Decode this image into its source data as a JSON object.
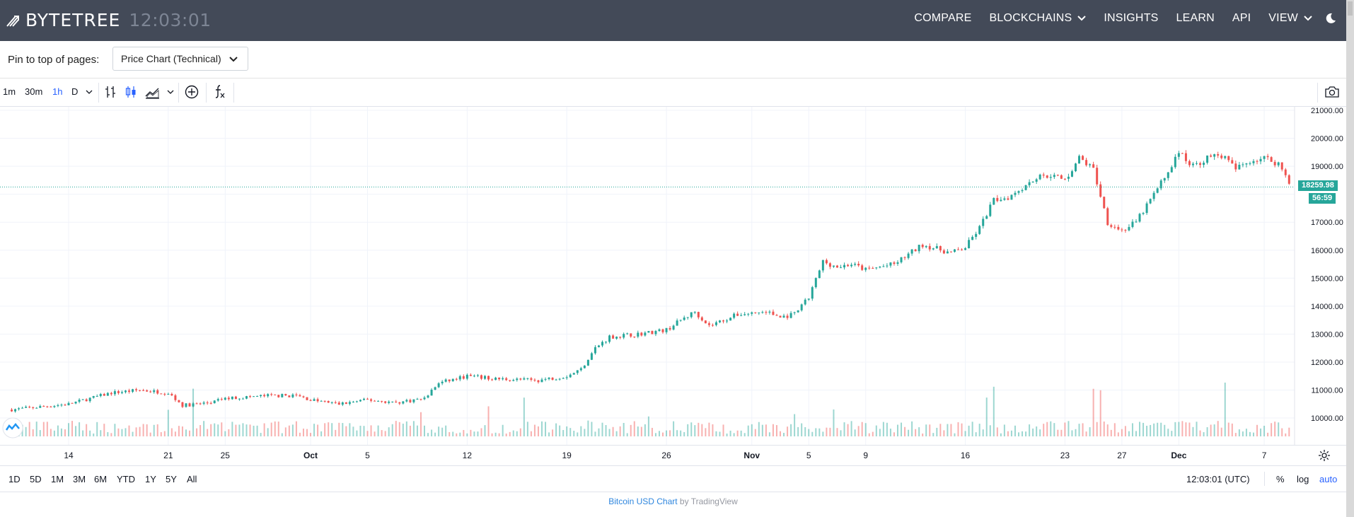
{
  "header": {
    "brand": "BYTETREE",
    "clock": "12:03:01",
    "nav": [
      {
        "label": "COMPARE",
        "dropdown": false
      },
      {
        "label": "BLOCKCHAINS",
        "dropdown": true
      },
      {
        "label": "INSIGHTS",
        "dropdown": false
      },
      {
        "label": "LEARN",
        "dropdown": false
      },
      {
        "label": "API",
        "dropdown": false
      },
      {
        "label": "VIEW",
        "dropdown": true
      }
    ]
  },
  "pin": {
    "label": "Pin to top of pages:",
    "selected": "Price Chart (Technical)"
  },
  "toolbar": {
    "intervals": [
      "1m",
      "30m",
      "1h",
      "D"
    ],
    "active_interval": "1h",
    "indicators_label": "fx"
  },
  "chart_data": {
    "type": "candlestick",
    "title": "",
    "series_name": "",
    "y_ticks": [
      "21000.00",
      "20000.00",
      "19000.00",
      "17000.00",
      "16000.00",
      "15000.00",
      "14000.00",
      "13000.00",
      "12000.00",
      "11000.00",
      "10000.00"
    ],
    "ylim": [
      9500,
      21100
    ],
    "x_ticks": [
      "14",
      "21",
      "25",
      "Oct",
      "5",
      "12",
      "19",
      "26",
      "Nov",
      "5",
      "9",
      "16",
      "23",
      "27",
      "Dec",
      "7"
    ],
    "last_price": "18259.98",
    "countdown": "56:59",
    "price_path": [
      [
        "Sep 10",
        10300
      ],
      [
        "Sep 12",
        10400
      ],
      [
        "Sep 14",
        10500
      ],
      [
        "Sep 17",
        10900
      ],
      [
        "Sep 19",
        11000
      ],
      [
        "Sep 21",
        10900
      ],
      [
        "Sep 22",
        10450
      ],
      [
        "Sep 24",
        10550
      ],
      [
        "Sep 25",
        10700
      ],
      [
        "Sep 28",
        10800
      ],
      [
        "Sep 30",
        10800
      ],
      [
        "Oct 1",
        10650
      ],
      [
        "Oct 3",
        10500
      ],
      [
        "Oct 5",
        10650
      ],
      [
        "Oct 7",
        10550
      ],
      [
        "Oct 9",
        10700
      ],
      [
        "Oct 10",
        11250
      ],
      [
        "Oct 12",
        11500
      ],
      [
        "Oct 14",
        11400
      ],
      [
        "Oct 17",
        11350
      ],
      [
        "Oct 19",
        11500
      ],
      [
        "Oct 20",
        11750
      ],
      [
        "Oct 21",
        12500
      ],
      [
        "Oct 22",
        12900
      ],
      [
        "Oct 24",
        13000
      ],
      [
        "Oct 26",
        13150
      ],
      [
        "Oct 27",
        13500
      ],
      [
        "Oct 28",
        13800
      ],
      [
        "Oct 29",
        13300
      ],
      [
        "Oct 31",
        13700
      ],
      [
        "Nov 2",
        13800
      ],
      [
        "Nov 3",
        13600
      ],
      [
        "Nov 4",
        13700
      ],
      [
        "Nov 5",
        14300
      ],
      [
        "Nov 6",
        15600
      ],
      [
        "Nov 7",
        15400
      ],
      [
        "Nov 8",
        15500
      ],
      [
        "Nov 9",
        15300
      ],
      [
        "Nov 11",
        15500
      ],
      [
        "Nov 13",
        16200
      ],
      [
        "Nov 15",
        15900
      ],
      [
        "Nov 16",
        16100
      ],
      [
        "Nov 17",
        16800
      ],
      [
        "Nov 18",
        17800
      ],
      [
        "Nov 19",
        17900
      ],
      [
        "Nov 21",
        18600
      ],
      [
        "Nov 22",
        18700
      ],
      [
        "Nov 23",
        18500
      ],
      [
        "Nov 24",
        19300
      ],
      [
        "Nov 25",
        18900
      ],
      [
        "Nov 26",
        17000
      ],
      [
        "Nov 27",
        16700
      ],
      [
        "Nov 28",
        17000
      ],
      [
        "Nov 29",
        17800
      ],
      [
        "Nov 30",
        18600
      ],
      [
        "Dec 1",
        19500
      ],
      [
        "Dec 2",
        19000
      ],
      [
        "Dec 3",
        19300
      ],
      [
        "Dec 4",
        19400
      ],
      [
        "Dec 5",
        18900
      ],
      [
        "Dec 6",
        19200
      ],
      [
        "Dec 7",
        19300
      ],
      [
        "Dec 8",
        19100
      ],
      [
        "Dec 9",
        18260
      ]
    ]
  },
  "rangebar": {
    "ranges": [
      "1D",
      "5D",
      "1M",
      "3M",
      "6M",
      "YTD",
      "1Y",
      "5Y",
      "All"
    ],
    "time_utc": "12:03:01 (UTC)",
    "percent": "%",
    "log": "log",
    "auto": "auto"
  },
  "credit": {
    "link_text": "Bitcoin USD Chart",
    "by_text": " by TradingView"
  },
  "colors": {
    "up": "#26a69a",
    "down": "#ef5350",
    "header_bg": "#434a58",
    "accent": "#2962ff"
  }
}
